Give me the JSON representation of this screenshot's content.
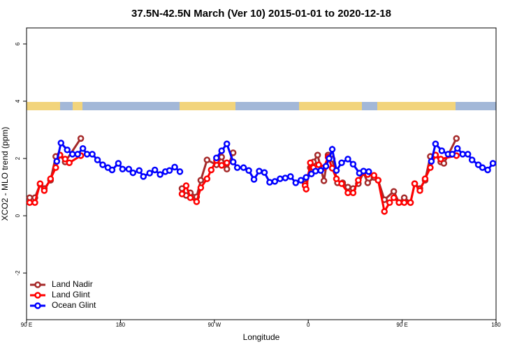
{
  "chart_data": {
    "type": "line",
    "title": "37.5N-42.5N March (Ver 10)   2015-01-01 to 2020-12-18",
    "x_label": "Longitude",
    "y_label": "XCO2 - MLO trend (ppm)",
    "xlim": [
      90,
      540
    ],
    "ylim": [
      -3.63,
      6.56
    ],
    "xticks": [
      {
        "value": 90,
        "label": "90 E"
      },
      180,
      {
        "value": 270,
        "label": "90 W"
      },
      0,
      {
        "value": 450,
        "label": "90 E"
      },
      {
        "value": 540,
        "label": "180"
      }
    ],
    "yticks": [
      -2,
      0,
      2,
      4,
      6
    ],
    "legend": "bottom-left",
    "series": [
      {
        "name": "Land Nadir",
        "color": "#a52a2a",
        "x": [
          93,
          98,
          103,
          107,
          113,
          118,
          122,
          127,
          142,
          190,
          239,
          243,
          247,
          253,
          257,
          263,
          272,
          277,
          282,
          288,
          320,
          357,
          362,
          365,
          369,
          375,
          379,
          383,
          388,
          393,
          398,
          403,
          408,
          413,
          417,
          423,
          427,
          433,
          442,
          447,
          452,
          458,
          462,
          467,
          472,
          477,
          482,
          487,
          490,
          502
        ],
        "values": [
          0.63,
          0.63,
          1.1,
          0.95,
          1.24,
          2.07,
          2.12,
          1.88,
          2.7,
          null,
          0.95,
          0.71,
          0.8,
          0.66,
          1.24,
          1.95,
          1.78,
          2.05,
          1.63,
          2.2,
          null,
          1.12,
          1.68,
          1.88,
          2.12,
          1.22,
          2.12,
          1.98,
          1.15,
          1.15,
          1.0,
          0.95,
          1.12,
          1.51,
          1.15,
          1.34,
          1.24,
          0.56,
          0.85,
          0.46,
          0.63,
          0.46,
          1.12,
          0.95,
          1.24,
          2.07,
          2.12,
          1.88,
          1.83,
          2.7
        ]
      },
      {
        "name": "Land Glint",
        "color": "#ff0000",
        "x": [
          93,
          98,
          103,
          107,
          113,
          118,
          122,
          127,
          131,
          142,
          190,
          239,
          243,
          247,
          253,
          257,
          263,
          267,
          272,
          277,
          282,
          288,
          320,
          357,
          358,
          362,
          365,
          370,
          375,
          379,
          383,
          387,
          392,
          398,
          403,
          408,
          413,
          417,
          423,
          427,
          433,
          438,
          442,
          447,
          452,
          458,
          462,
          467,
          472,
          477,
          482,
          487,
          502
        ],
        "values": [
          0.46,
          0.46,
          1.12,
          0.88,
          1.29,
          1.68,
          2.12,
          1.98,
          1.85,
          2.1,
          null,
          0.76,
          1.05,
          0.63,
          0.49,
          0.98,
          1.29,
          1.6,
          1.93,
          1.76,
          1.85,
          1.88,
          null,
          1.05,
          0.93,
          1.85,
          1.68,
          1.78,
          1.68,
          2.05,
          1.66,
          1.29,
          1.12,
          0.8,
          0.8,
          1.24,
          1.51,
          1.44,
          1.41,
          1.24,
          0.15,
          0.46,
          0.63,
          0.46,
          0.46,
          0.46,
          1.12,
          0.88,
          1.29,
          1.68,
          2.12,
          1.98,
          2.1
        ]
      },
      {
        "name": "Ocean Glint",
        "color": "#0000ff",
        "x": [
          119,
          123,
          129,
          134,
          139,
          144,
          148,
          153,
          158,
          163,
          168,
          172,
          178,
          182,
          188,
          192,
          198,
          202,
          208,
          213,
          218,
          223,
          227,
          232,
          237,
          255,
          272,
          277,
          282,
          288,
          292,
          298,
          303,
          308,
          313,
          318,
          323,
          328,
          333,
          338,
          343,
          348,
          353,
          358,
          363,
          367,
          372,
          377,
          380,
          383,
          387,
          392,
          398,
          403,
          409,
          413,
          418,
          450,
          478,
          482,
          488,
          494,
          498,
          503,
          508,
          513,
          517,
          523,
          527,
          532,
          537
        ],
        "values": [
          1.9,
          2.54,
          2.3,
          2.15,
          2.15,
          2.35,
          2.15,
          2.15,
          1.95,
          1.78,
          1.68,
          1.6,
          1.83,
          1.63,
          1.63,
          1.5,
          1.58,
          1.37,
          1.49,
          1.6,
          1.44,
          1.54,
          1.58,
          1.7,
          1.54,
          null,
          2.02,
          2.27,
          2.51,
          1.88,
          1.68,
          1.68,
          1.58,
          1.27,
          1.56,
          1.51,
          1.17,
          1.2,
          1.29,
          1.32,
          1.37,
          1.15,
          1.24,
          1.34,
          1.46,
          1.56,
          1.58,
          1.73,
          2.0,
          2.32,
          1.58,
          1.85,
          1.98,
          1.8,
          1.49,
          1.56,
          1.54,
          null,
          1.9,
          2.51,
          2.27,
          2.15,
          2.15,
          2.35,
          2.15,
          2.15,
          1.95,
          1.78,
          1.68,
          1.6,
          1.83
        ]
      }
    ]
  }
}
